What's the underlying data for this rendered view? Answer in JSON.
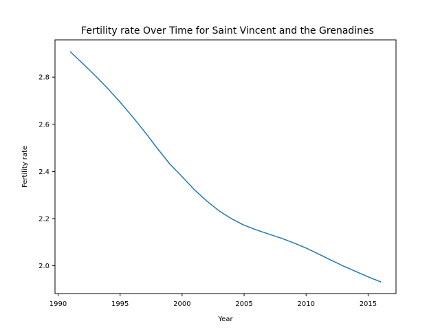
{
  "chart_data": {
    "type": "line",
    "title": "Fertility rate Over Time for Saint Vincent and the Grenadines",
    "xlabel": "Year",
    "ylabel": "Fertility rate",
    "xlim": [
      1989.75,
      2017.25
    ],
    "ylim": [
      1.882,
      2.958
    ],
    "xticks": [
      1990,
      1995,
      2000,
      2005,
      2010,
      2015
    ],
    "yticks": [
      2.0,
      2.2,
      2.4,
      2.6,
      2.8
    ],
    "grid": false,
    "legend": "none",
    "line_color": "#1f77b4",
    "x": [
      1991,
      1992,
      1993,
      1994,
      1995,
      1996,
      1997,
      1998,
      1999,
      2000,
      2001,
      2002,
      2003,
      2004,
      2005,
      2006,
      2007,
      2008,
      2009,
      2010,
      2011,
      2012,
      2013,
      2014,
      2015,
      2016
    ],
    "series": [
      {
        "values": [
          2.907,
          2.857,
          2.806,
          2.752,
          2.694,
          2.632,
          2.567,
          2.498,
          2.432,
          2.378,
          2.322,
          2.274,
          2.232,
          2.199,
          2.172,
          2.152,
          2.134,
          2.117,
          2.097,
          2.075,
          2.05,
          2.024,
          1.999,
          1.976,
          1.953,
          1.932
        ]
      }
    ]
  }
}
